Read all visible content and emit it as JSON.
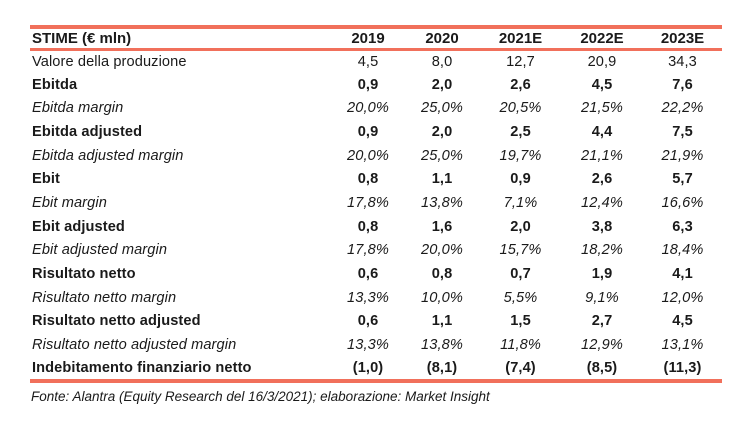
{
  "accent_color": "#F1705B",
  "chart_data": {
    "type": "table",
    "title": "STIME (€ mln)",
    "year_columns": [
      "2019",
      "2020",
      "2021E",
      "2022E",
      "2023E"
    ],
    "rows": [
      {
        "label": "Valore della produzione",
        "style": "regular",
        "values": [
          "4,5",
          "8,0",
          "12,7",
          "20,9",
          "34,3"
        ]
      },
      {
        "label": "Ebitda",
        "style": "bold",
        "values": [
          "0,9",
          "2,0",
          "2,6",
          "4,5",
          "7,6"
        ]
      },
      {
        "label": "Ebitda margin",
        "style": "italic",
        "values": [
          "20,0%",
          "25,0%",
          "20,5%",
          "21,5%",
          "22,2%"
        ]
      },
      {
        "label": "Ebitda adjusted",
        "style": "bold",
        "values": [
          "0,9",
          "2,0",
          "2,5",
          "4,4",
          "7,5"
        ]
      },
      {
        "label": "Ebitda adjusted margin",
        "style": "italic",
        "values": [
          "20,0%",
          "25,0%",
          "19,7%",
          "21,1%",
          "21,9%"
        ]
      },
      {
        "label": "Ebit",
        "style": "bold",
        "values": [
          "0,8",
          "1,1",
          "0,9",
          "2,6",
          "5,7"
        ]
      },
      {
        "label": "Ebit margin",
        "style": "italic",
        "values": [
          "17,8%",
          "13,8%",
          "7,1%",
          "12,4%",
          "16,6%"
        ]
      },
      {
        "label": "Ebit adjusted",
        "style": "bold",
        "values": [
          "0,8",
          "1,6",
          "2,0",
          "3,8",
          "6,3"
        ]
      },
      {
        "label": "Ebit adjusted margin",
        "style": "italic",
        "values": [
          "17,8%",
          "20,0%",
          "15,7%",
          "18,2%",
          "18,4%"
        ]
      },
      {
        "label": "Risultato netto",
        "style": "bold",
        "values": [
          "0,6",
          "0,8",
          "0,7",
          "1,9",
          "4,1"
        ]
      },
      {
        "label": "Risultato netto margin",
        "style": "italic",
        "values": [
          "13,3%",
          "10,0%",
          "5,5%",
          "9,1%",
          "12,0%"
        ]
      },
      {
        "label": "Risultato netto adjusted",
        "style": "bold",
        "values": [
          "0,6",
          "1,1",
          "1,5",
          "2,7",
          "4,5"
        ]
      },
      {
        "label": "Risultato netto adjusted margin",
        "style": "italic",
        "values": [
          "13,3%",
          "13,8%",
          "11,8%",
          "12,9%",
          "13,1%"
        ]
      },
      {
        "label": "Indebitamento finanziario netto",
        "style": "bold",
        "values": [
          "(1,0)",
          "(8,1)",
          "(7,4)",
          "(8,5)",
          "(11,3)"
        ]
      }
    ],
    "source": "Fonte: Alantra (Equity Research del 16/3/2021); elaborazione: Market Insight"
  }
}
